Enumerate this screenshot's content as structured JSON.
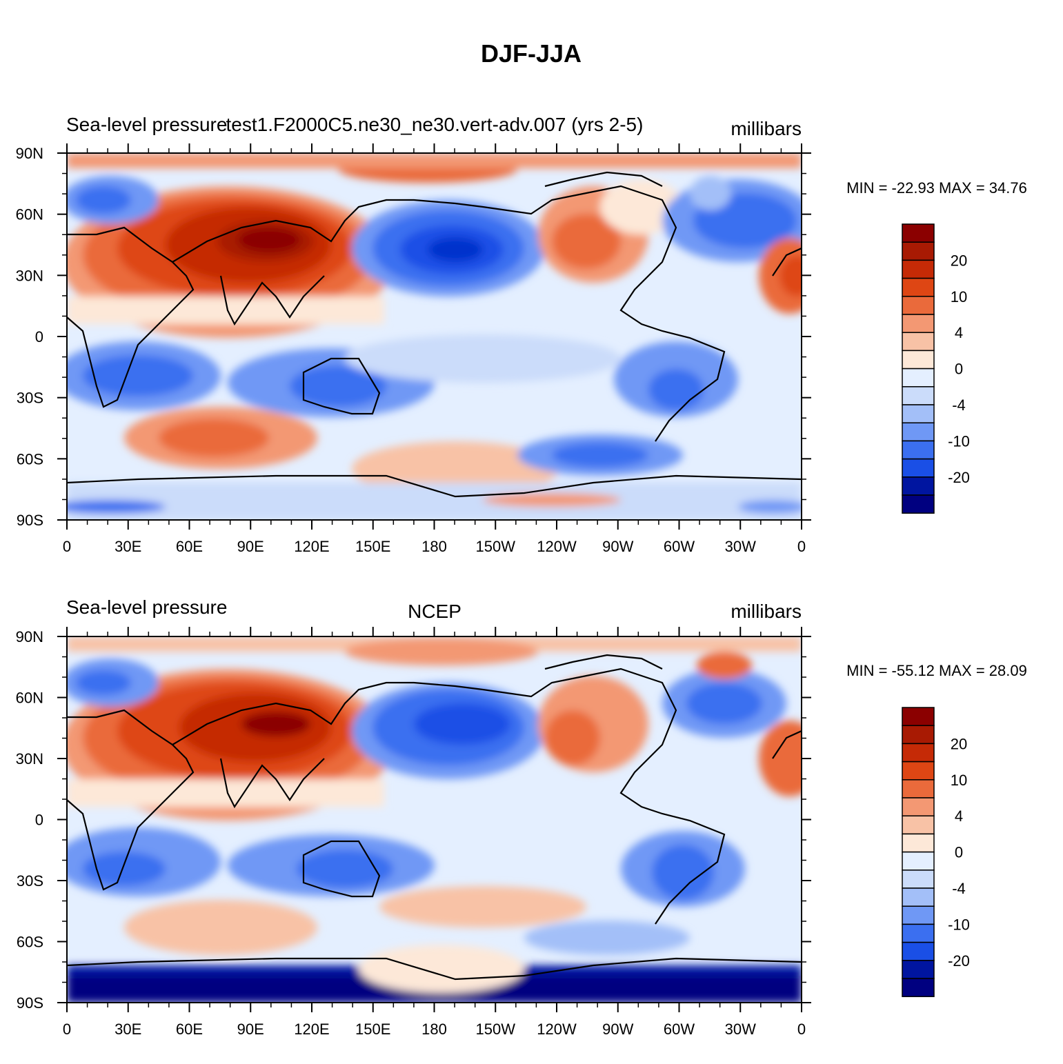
{
  "title": "DJF-JJA",
  "colors": {
    "levels": [
      "#000080",
      "#0015a0",
      "#0033cc",
      "#1a4fe6",
      "#3b6ff0",
      "#6f98f5",
      "#a3bff8",
      "#cbdcfa",
      "#e4efff",
      "#fde8d8",
      "#f8c2a6",
      "#f39873",
      "#ea6a3b",
      "#de4614",
      "#c52a06",
      "#a81a03",
      "#8b0000"
    ],
    "coast": "#000000",
    "antarctic_deep": "#000080"
  },
  "legend_labels": [
    "20",
    "10",
    "4",
    "0",
    "-4",
    "-10",
    "-20"
  ],
  "lon_labels": [
    "0",
    "30E",
    "60E",
    "90E",
    "120E",
    "150E",
    "180",
    "150W",
    "120W",
    "90W",
    "60W",
    "30W",
    "0"
  ],
  "lat_labels": [
    "90N",
    "60N",
    "30N",
    "0",
    "30S",
    "60S",
    "90S"
  ],
  "panels": [
    {
      "left": "Sea-level pressure",
      "center": "test1.F2000C5.ne30_ne30.vert-adv.007 (yrs 2-5)",
      "right": "millibars",
      "stats": "MIN = -22.93 MAX =  34.76"
    },
    {
      "left": "Sea-level pressure",
      "center": "NCEP",
      "right": "millibars",
      "stats": "MIN = -55.12 MAX =  28.09"
    }
  ]
}
